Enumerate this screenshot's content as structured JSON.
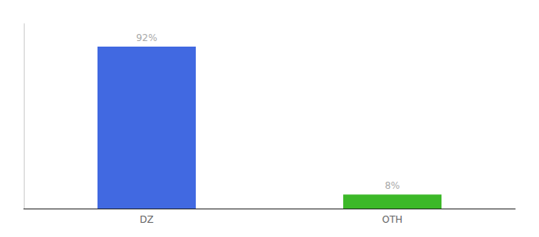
{
  "chart_data": {
    "type": "bar",
    "categories": [
      "DZ",
      "OTH"
    ],
    "values": [
      92,
      8
    ],
    "value_labels": [
      "92%",
      "8%"
    ],
    "colors": [
      "#4169e1",
      "#3cb828"
    ],
    "ylim": [
      0,
      105
    ],
    "data_labels": true,
    "tick_labels": "x",
    "grid": false
  }
}
